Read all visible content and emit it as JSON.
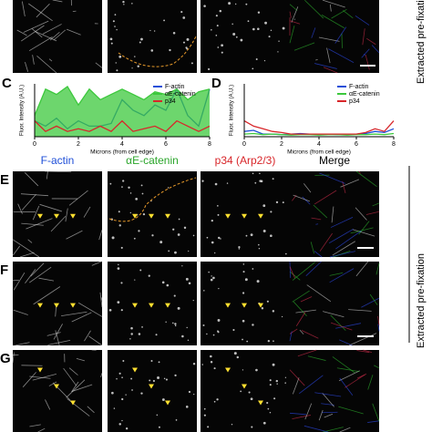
{
  "side_labels": [
    "Extracted pre-fixation",
    "Extracted pre-fixation"
  ],
  "column_headers": [
    {
      "text": "F-actin",
      "color": "#1f4fd8"
    },
    {
      "text": "αE-catenin",
      "color": "#2aa52a"
    },
    {
      "text": "p34 (Arp2/3)",
      "color": "#d8262a"
    },
    {
      "text": "Merge",
      "color": "#000000"
    }
  ],
  "row_labels": [
    "E",
    "F",
    "G"
  ],
  "chart_data": [
    {
      "type": "line",
      "panel_label": "C",
      "ylabel": "Fluor. Intensity (A.U.)",
      "xlabel": "Microns (from cell edge)",
      "x": [
        0,
        0.5,
        1,
        1.5,
        2,
        2.5,
        3,
        3.5,
        4,
        4.5,
        5,
        5.5,
        6,
        6.5,
        7,
        7.5,
        8
      ],
      "xlim": [
        0,
        8
      ],
      "xticks": [
        0,
        2,
        4,
        6,
        8
      ],
      "ylim": [
        0,
        1
      ],
      "series": [
        {
          "name": "F-actin",
          "color": "#1f4fd8",
          "area": false,
          "values": [
            0.3,
            0.2,
            0.35,
            0.15,
            0.3,
            0.2,
            0.2,
            0.25,
            0.7,
            0.5,
            0.4,
            0.6,
            0.5,
            0.9,
            0.4,
            0.2,
            0.9
          ]
        },
        {
          "name": "αE-catenin",
          "color": "#3cc83c",
          "area": true,
          "values": [
            0.4,
            0.9,
            0.8,
            0.95,
            0.6,
            0.9,
            0.7,
            0.8,
            0.9,
            0.8,
            0.7,
            0.85,
            0.8,
            0.9,
            0.7,
            0.85,
            0.9
          ]
        },
        {
          "name": "p34",
          "color": "#d8262a",
          "area": false,
          "values": [
            0.3,
            0.1,
            0.2,
            0.1,
            0.15,
            0.1,
            0.2,
            0.1,
            0.3,
            0.1,
            0.15,
            0.2,
            0.1,
            0.3,
            0.2,
            0.1,
            0.2
          ]
        }
      ]
    },
    {
      "type": "line",
      "panel_label": "D",
      "ylabel": "Fluor. Intensity (A.U.)",
      "xlabel": "Microns (from cell edge)",
      "x": [
        0,
        0.5,
        1,
        1.5,
        2,
        2.5,
        3,
        3.5,
        4,
        4.5,
        5,
        5.5,
        6,
        6.5,
        7,
        7.5,
        8
      ],
      "xlim": [
        0,
        8
      ],
      "xticks": [
        0,
        2,
        4,
        6,
        8
      ],
      "ylim": [
        0,
        1
      ],
      "series": [
        {
          "name": "F-actin",
          "color": "#1f4fd8",
          "area": false,
          "values": [
            0.1,
            0.12,
            0.05,
            0.05,
            0.04,
            0.05,
            0.06,
            0.05,
            0.05,
            0.05,
            0.04,
            0.05,
            0.05,
            0.06,
            0.1,
            0.08,
            0.15
          ]
        },
        {
          "name": "αE-catenin",
          "color": "#3cc83c",
          "area": false,
          "values": [
            0.05,
            0.06,
            0.04,
            0.05,
            0.04,
            0.03,
            0.04,
            0.04,
            0.03,
            0.04,
            0.04,
            0.03,
            0.04,
            0.04,
            0.05,
            0.04,
            0.06
          ]
        },
        {
          "name": "p34",
          "color": "#d8262a",
          "area": false,
          "values": [
            0.3,
            0.2,
            0.15,
            0.1,
            0.08,
            0.05,
            0.05,
            0.05,
            0.05,
            0.05,
            0.05,
            0.05,
            0.05,
            0.08,
            0.15,
            0.1,
            0.3
          ]
        }
      ]
    }
  ]
}
